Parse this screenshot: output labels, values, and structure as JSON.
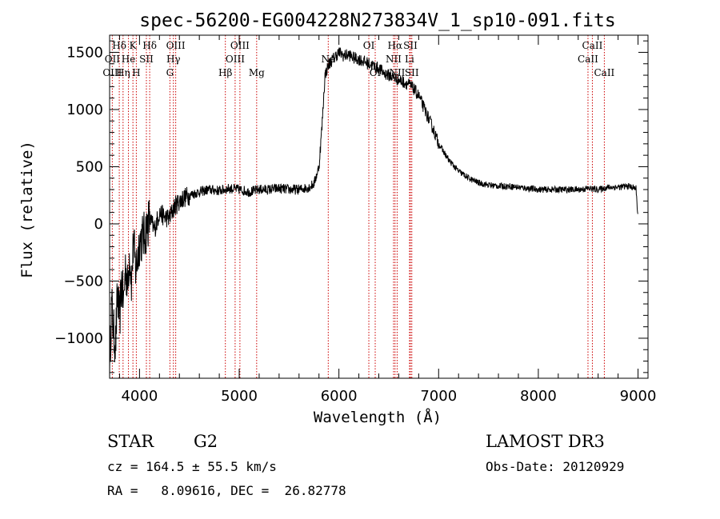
{
  "chart_data": {
    "type": "line",
    "title": "spec-56200-EG004228N273834V_1_sp10-091.fits",
    "xlabel": "Wavelength (Å)",
    "ylabel": "Flux (relative)",
    "xlim": [
      3700,
      9100
    ],
    "ylim": [
      -1350,
      1650
    ],
    "xticks": [
      4000,
      5000,
      6000,
      7000,
      8000,
      9000
    ],
    "yticks": [
      -1000,
      -500,
      0,
      500,
      1000,
      1500
    ],
    "grid": false,
    "series": [
      {
        "x": [
          3700,
          3720,
          3740,
          3760,
          3780,
          3800,
          3820,
          3840,
          3860,
          3880,
          3900,
          3920,
          3940,
          3960,
          3980,
          4000,
          4050,
          4100,
          4150,
          4200,
          4250,
          4300,
          4350,
          4400,
          4450,
          4500,
          4600,
          4700,
          4800,
          4900,
          5000,
          5100,
          5200,
          5300,
          5400,
          5500,
          5600,
          5700,
          5750,
          5800,
          5830,
          5860,
          5880,
          5900,
          5920,
          5950,
          6000,
          6050,
          6100,
          6150,
          6200,
          6250,
          6300,
          6350,
          6400,
          6450,
          6500,
          6550,
          6600,
          6650,
          6700,
          6750,
          6800,
          6850,
          6900,
          6950,
          7000,
          7100,
          7200,
          7300,
          7400,
          7500,
          7600,
          7700,
          7800,
          7900,
          8000,
          8100,
          8200,
          8300,
          8400,
          8500,
          8600,
          8700,
          8800,
          8900,
          8980,
          9000
        ],
        "y": [
          -1250,
          -700,
          -950,
          -1050,
          -600,
          -850,
          -500,
          -700,
          -350,
          -550,
          -250,
          -500,
          -150,
          -400,
          -300,
          -150,
          -100,
          50,
          -50,
          100,
          60,
          50,
          150,
          200,
          230,
          250,
          280,
          300,
          290,
          310,
          300,
          280,
          300,
          300,
          310,
          300,
          300,
          320,
          350,
          500,
          850,
          1300,
          1350,
          1400,
          1420,
          1450,
          1500,
          1470,
          1480,
          1450,
          1440,
          1420,
          1400,
          1380,
          1360,
          1320,
          1300,
          1280,
          1260,
          1240,
          1220,
          1180,
          1120,
          1020,
          920,
          820,
          700,
          560,
          460,
          400,
          360,
          340,
          330,
          330,
          320,
          310,
          300,
          300,
          300,
          300,
          300,
          310,
          300,
          320,
          320,
          330,
          310,
          50
        ]
      }
    ],
    "line_ids": [
      {
        "label": "Hδ",
        "x": 3797,
        "row": 0
      },
      {
        "label": "K",
        "x": 3934,
        "row": 0
      },
      {
        "label": "Hδ",
        "x": 4102,
        "row": 0
      },
      {
        "label": "OIII",
        "x": 4363,
        "row": 0
      },
      {
        "label": "OIII",
        "x": 5007,
        "row": 0
      },
      {
        "label": "OI",
        "x": 6300,
        "row": 0
      },
      {
        "label": "Hα",
        "x": 6563,
        "row": 0
      },
      {
        "label": "SII",
        "x": 6717,
        "row": 0
      },
      {
        "label": "CaII",
        "x": 8542,
        "row": 0
      },
      {
        "label": "OII",
        "x": 3727,
        "row": 1
      },
      {
        "label": "He",
        "x": 3889,
        "row": 1
      },
      {
        "label": "SII",
        "x": 4069,
        "row": 1
      },
      {
        "label": "Hγ",
        "x": 4340,
        "row": 1
      },
      {
        "label": "OIII",
        "x": 4959,
        "row": 1
      },
      {
        "label": "Na",
        "x": 5893,
        "row": 1
      },
      {
        "label": "NII",
        "x": 6548,
        "row": 1
      },
      {
        "label": "Li",
        "x": 6708,
        "row": 1
      },
      {
        "label": "CaII",
        "x": 8498,
        "row": 1
      },
      {
        "label": "OIII",
        "x": 3727,
        "row": 2
      },
      {
        "label": "Hη",
        "x": 3835,
        "row": 2
      },
      {
        "label": "H",
        "x": 3968,
        "row": 2
      },
      {
        "label": "G",
        "x": 4305,
        "row": 2
      },
      {
        "label": "Hβ",
        "x": 4861,
        "row": 2
      },
      {
        "label": "Mg",
        "x": 5175,
        "row": 2
      },
      {
        "label": "OI",
        "x": 6364,
        "row": 2
      },
      {
        "label": "NII",
        "x": 6584,
        "row": 2
      },
      {
        "label": "SII",
        "x": 6731,
        "row": 2
      },
      {
        "label": "CaII",
        "x": 8662,
        "row": 2
      }
    ],
    "line_marks": [
      3727,
      3797,
      3835,
      3889,
      3934,
      3968,
      4069,
      4102,
      4305,
      4340,
      4363,
      4861,
      4959,
      5007,
      5175,
      5893,
      6300,
      6364,
      6548,
      6563,
      6584,
      6708,
      6717,
      6731,
      8498,
      8542,
      8662
    ],
    "colors": {
      "line": "#000000",
      "line_marks": "#cc0000",
      "background": "#ffffff"
    }
  },
  "info": {
    "class_label": "STAR",
    "subclass": "G2",
    "survey": "LAMOST DR3",
    "cz": "cz = 164.5 ± 55.5 km/s",
    "obs_date": "Obs-Date: 20120929",
    "coords": "RA =   8.09616, DEC =  26.82778"
  }
}
